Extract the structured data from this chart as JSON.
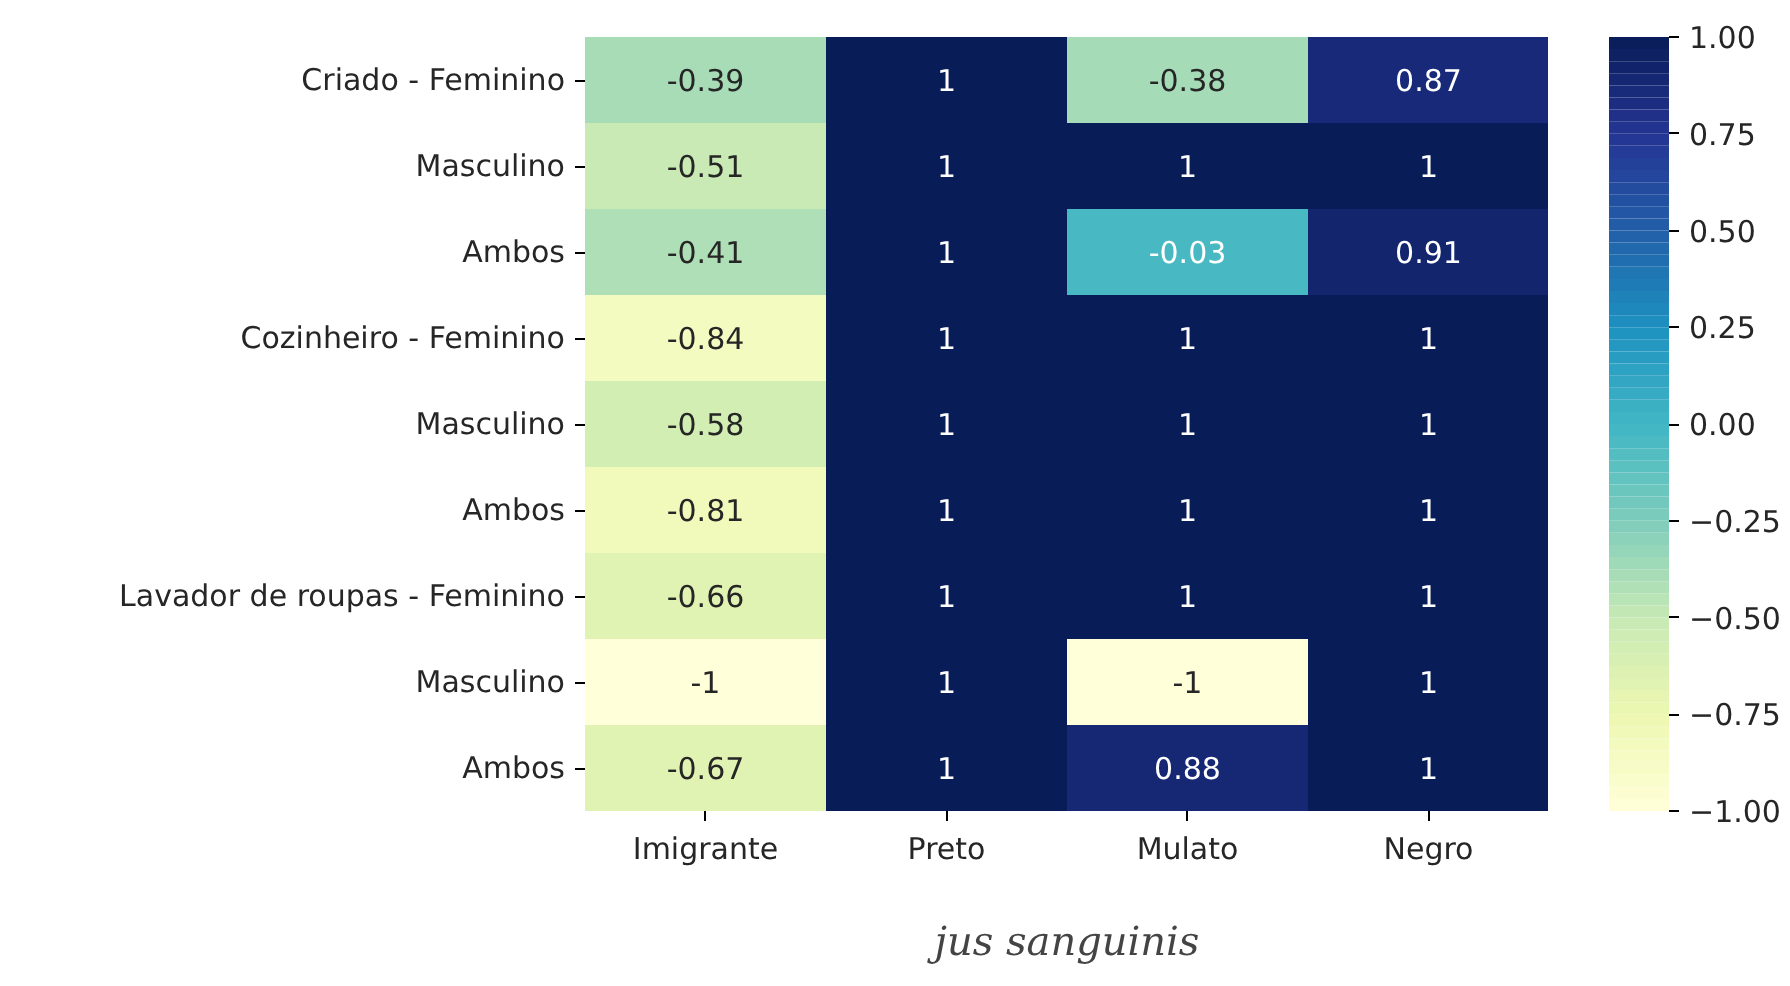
{
  "chart_data": {
    "type": "heatmap",
    "categories": [
      "Imigrante",
      "Preto",
      "Mulato",
      "Negro"
    ],
    "y_categories": [
      "Criado - Feminino",
      "Masculino",
      "Ambos",
      "Cozinheiro - Feminino",
      "Masculino",
      "Ambos",
      "Lavador de roupas - Feminino",
      "Masculino",
      "Ambos"
    ],
    "cells": [
      [
        -0.39,
        1,
        -0.38,
        0.87
      ],
      [
        -0.51,
        1,
        1,
        1
      ],
      [
        -0.41,
        1,
        -0.03,
        0.91
      ],
      [
        -0.84,
        1,
        1,
        1
      ],
      [
        -0.58,
        1,
        1,
        1
      ],
      [
        -0.81,
        1,
        1,
        1
      ],
      [
        -0.66,
        1,
        1,
        1
      ],
      [
        -1,
        1,
        -1,
        1
      ],
      [
        -0.67,
        1,
        0.88,
        1
      ]
    ],
    "clim": [
      -1,
      1
    ],
    "cticks": [
      {
        "value": 1,
        "label": "1.00"
      },
      {
        "value": 0.75,
        "label": "0.75"
      },
      {
        "value": 0.5,
        "label": "0.50"
      },
      {
        "value": 0.25,
        "label": "0.25"
      },
      {
        "value": 0,
        "label": "0.00"
      },
      {
        "value": -0.25,
        "label": "−0.25"
      },
      {
        "value": -0.5,
        "label": "−0.50"
      },
      {
        "value": -0.75,
        "label": "−0.75"
      },
      {
        "value": -1,
        "label": "−1.00"
      }
    ],
    "data_labels": true,
    "xlabel": "jus sanguinis"
  }
}
